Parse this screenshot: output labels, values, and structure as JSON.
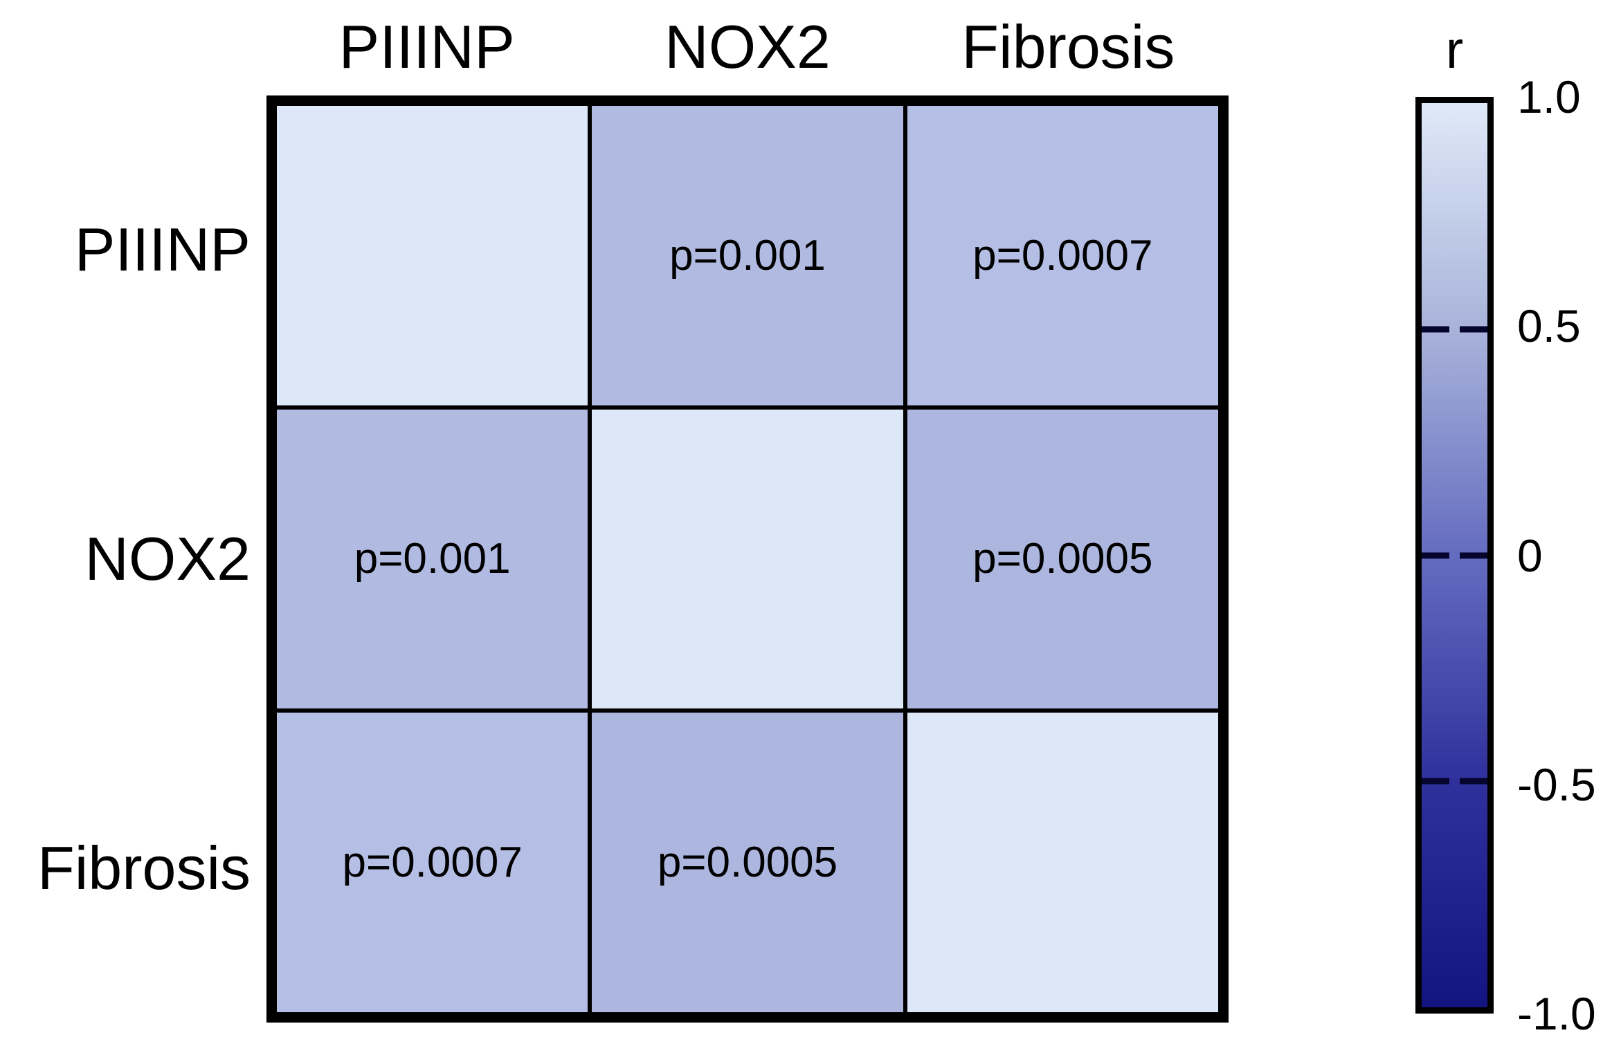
{
  "figure": {
    "background_color": "#ffffff",
    "text_color": "#000000",
    "border_color": "#000000"
  },
  "chart_data": {
    "type": "heatmap",
    "description": "Correlation matrix between PIIINP, NOX2 and Fibrosis; off-diagonal cells show p-values, cell shade encodes correlation coefficient r",
    "variables": [
      "PIIINP",
      "NOX2",
      "Fibrosis"
    ],
    "col_headers": [
      "PIIINP",
      "NOX2",
      "Fibrosis"
    ],
    "row_labels": [
      "PIIINP",
      "NOX2",
      "Fibrosis"
    ],
    "cells": [
      {
        "row": "PIIINP",
        "col": "PIIINP",
        "label": "",
        "p": null,
        "r_estimated_from_color": 1.0,
        "color": "#dce7f8"
      },
      {
        "row": "PIIINP",
        "col": "NOX2",
        "label": "p=0.001",
        "p": 0.001,
        "r_estimated_from_color": 0.57,
        "color": "#b1bbe1"
      },
      {
        "row": "PIIINP",
        "col": "Fibrosis",
        "label": "p=0.0007",
        "p": 0.0007,
        "r_estimated_from_color": 0.6,
        "color": "#b5bee4"
      },
      {
        "row": "NOX2",
        "col": "PIIINP",
        "label": "p=0.001",
        "p": 0.001,
        "r_estimated_from_color": 0.57,
        "color": "#b1bbe1"
      },
      {
        "row": "NOX2",
        "col": "NOX2",
        "label": "",
        "p": null,
        "r_estimated_from_color": 1.0,
        "color": "#dce7f8"
      },
      {
        "row": "NOX2",
        "col": "Fibrosis",
        "label": "p=0.0005",
        "p": 0.0005,
        "r_estimated_from_color": 0.55,
        "color": "#acb6de"
      },
      {
        "row": "Fibrosis",
        "col": "PIIINP",
        "label": "p=0.0007",
        "p": 0.0007,
        "r_estimated_from_color": 0.6,
        "color": "#b5bee4"
      },
      {
        "row": "Fibrosis",
        "col": "NOX2",
        "label": "p=0.0005",
        "p": 0.0005,
        "r_estimated_from_color": 0.55,
        "color": "#acb6de"
      },
      {
        "row": "Fibrosis",
        "col": "Fibrosis",
        "label": "",
        "p": null,
        "r_estimated_from_color": 1.0,
        "color": "#dce7f8"
      }
    ],
    "colorbar": {
      "title": "r",
      "position": "right",
      "range": [
        -1.0,
        1.0
      ],
      "tick_labels": [
        "1.0",
        "0.5",
        "0",
        "-0.5",
        "-1.0"
      ],
      "tick_values": [
        1.0,
        0.5,
        0,
        -0.5,
        -1.0
      ],
      "gradient_stops": [
        {
          "r": 1.0,
          "color": "#dee9f8"
        },
        {
          "r": 0.5,
          "color": "#a9b3da"
        },
        {
          "r": 0.0,
          "color": "#646cc0"
        },
        {
          "r": -0.5,
          "color": "#2f309c"
        },
        {
          "r": -1.0,
          "color": "#141480"
        }
      ]
    }
  }
}
